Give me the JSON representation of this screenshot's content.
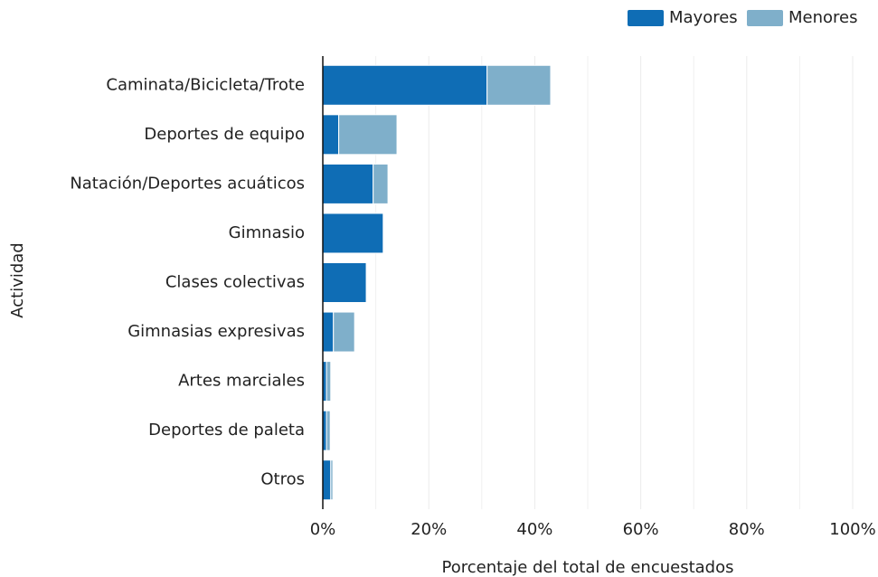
{
  "chart_data": {
    "type": "stacked_barh",
    "categories": [
      "Caminata/Bicicleta/Trote",
      "Deportes de equipo",
      "Natación/Deportes acuáticos",
      "Gimnasio",
      "Clases colectivas",
      "Gimnasias expresivas",
      "Artes marciales",
      "Deportes de paleta",
      "Otros"
    ],
    "series": [
      {
        "name": "Mayores",
        "color": "#0f6db5",
        "values": [
          31,
          3,
          9.5,
          11.4,
          8.2,
          2,
          0.7,
          0.7,
          1.5
        ]
      },
      {
        "name": "Menores",
        "color": "#7fafca",
        "values": [
          12,
          11,
          2.8,
          0,
          0,
          4,
          0.8,
          0.7,
          0.4
        ]
      }
    ],
    "xlim": [
      0,
      100
    ],
    "xticks": [
      {
        "value": 0,
        "label": "0%"
      },
      {
        "value": 20,
        "label": "20%"
      },
      {
        "value": 40,
        "label": "40%"
      },
      {
        "value": 60,
        "label": "60%"
      },
      {
        "value": 80,
        "label": "80%"
      },
      {
        "value": 100,
        "label": "100%"
      }
    ],
    "xminor": [
      10,
      30,
      50,
      70,
      90
    ],
    "xlabel": "Porcentaje del total de encuestados",
    "ylabel": "Actividad",
    "grid": true,
    "legend": "top-right"
  }
}
